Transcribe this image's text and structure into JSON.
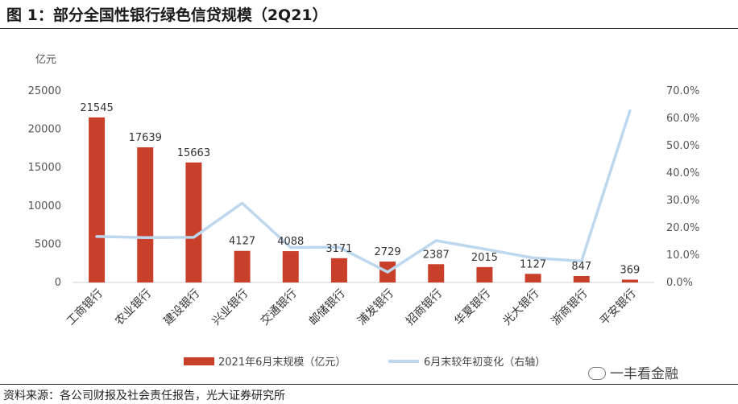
{
  "title": "图 1：部分全国性银行绿色信贷规模（2Q21）",
  "source": "资料来源：各公司财报及社会责任报告，光大证券研究所",
  "watermark": "一丰看金融",
  "colors": {
    "bar": "#C8402A",
    "line": "#BDD7EE"
  },
  "chart_data": {
    "type": "bar",
    "categories": [
      "工商银行",
      "农业银行",
      "建设银行",
      "兴业银行",
      "交通银行",
      "邮储银行",
      "浦发银行",
      "招商银行",
      "华夏银行",
      "光大银行",
      "浙商银行",
      "平安银行"
    ],
    "series": [
      {
        "name": "2021年6月末规模（亿元）",
        "type": "bar",
        "axis": "left",
        "values": [
          21545,
          17639,
          15663,
          4127,
          4088,
          3171,
          2729,
          2387,
          2015,
          1127,
          847,
          369
        ]
      },
      {
        "name": "6月末较年初变化（右轴）",
        "type": "line",
        "axis": "right",
        "values": [
          0.168,
          0.164,
          0.165,
          0.29,
          0.128,
          0.129,
          0.038,
          0.153,
          0.122,
          0.09,
          0.078,
          0.628
        ]
      }
    ],
    "ylabel": "亿元",
    "ylim": [
      0,
      25000
    ],
    "yticks": [
      "0",
      "5000",
      "10000",
      "15000",
      "20000",
      "25000"
    ],
    "y2lim": [
      0,
      0.7
    ],
    "y2ticks": [
      "0.0%",
      "10.0%",
      "20.0%",
      "30.0%",
      "40.0%",
      "50.0%",
      "60.0%",
      "70.0%"
    ],
    "legend": "bottom"
  }
}
